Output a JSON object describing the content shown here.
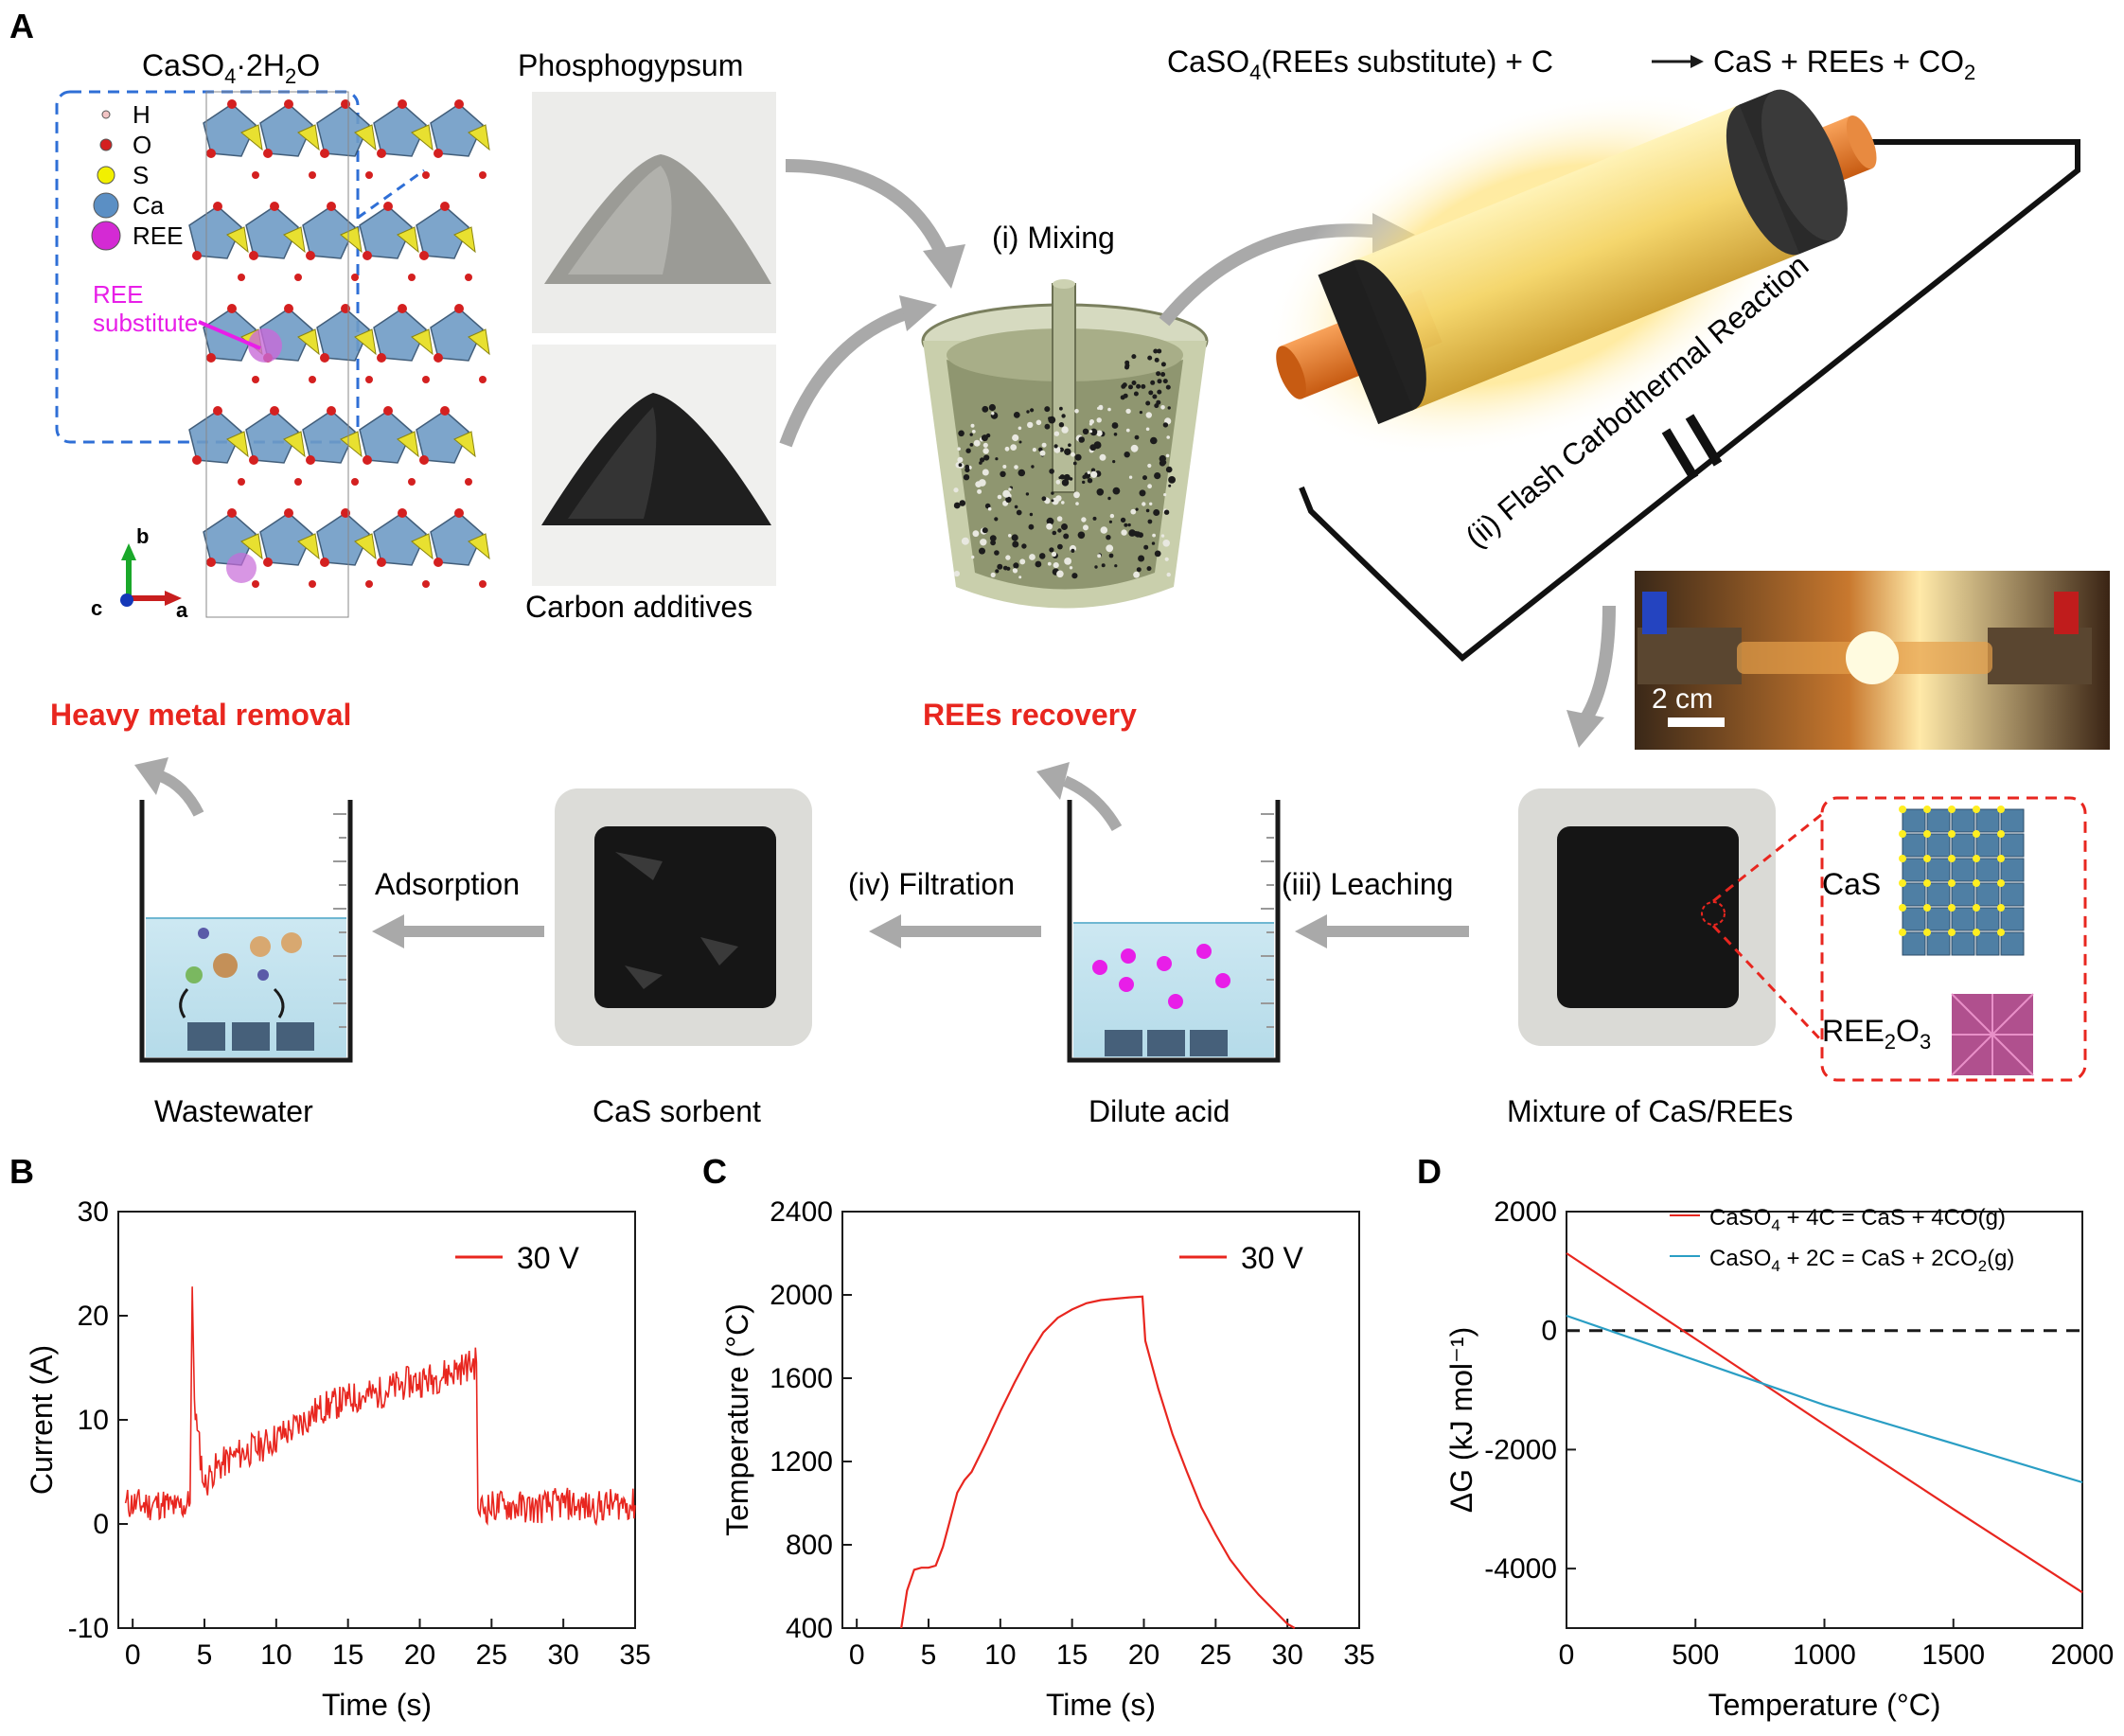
{
  "panel_a": {
    "panel_letter": "A",
    "crystal": {
      "formula_main": "CaSO",
      "formula_sub4": "4",
      "formula_dot": "·2H",
      "formula_sub2": "2",
      "formula_end": "O",
      "legend": [
        {
          "label": "H",
          "color": "#f2c4c4"
        },
        {
          "label": "O",
          "color": "#d42020"
        },
        {
          "label": "S",
          "color": "#f2f000"
        },
        {
          "label": "Ca",
          "color": "#5b8fc4"
        },
        {
          "label": "REE",
          "color": "#d42ad4"
        }
      ],
      "ree_note_line1": "REE",
      "ree_note_line2": "substitute",
      "axis_b": "b",
      "axis_c": "c",
      "axis_a": "a"
    },
    "phosphogypsum_label": "Phosphogypsum",
    "carbon_label": "Carbon additives",
    "mixing_label": "(i) Mixing",
    "equation": {
      "lhs": "CaSO",
      "lhs_sub": "4",
      "lhs_rest": "(REEs substitute) + C",
      "rhs": "CaS + REEs + CO",
      "rhs_sub": "2"
    },
    "reaction_label": "(ii) Flash Carbothermal Reaction",
    "scale_bar": "2 cm",
    "mixture_label": "Mixture of CaS/REEs",
    "cas_label": "CaS",
    "ree2o3": {
      "a": "REE",
      "b": "2",
      "c": "O",
      "d": "3"
    },
    "leaching_label": "(iii) Leaching",
    "dilute_acid_label": "Dilute acid",
    "ree_recovery_label": "REEs recovery",
    "filtration_label": "(iv) Filtration",
    "cas_sorbent_label": "CaS sorbent",
    "adsorption_label": "Adsorption",
    "wastewater_label": "Wastewater",
    "heavy_metal_label": "Heavy metal removal",
    "accent_red": "#e8261f",
    "accent_magenta": "#e81ee8"
  },
  "chart_data": [
    {
      "panel": "B",
      "type": "line",
      "xlabel": "Time (s)",
      "ylabel": "Current (A)",
      "xlim": [
        -1,
        35
      ],
      "ylim": [
        -10,
        30
      ],
      "xticks": [
        "0",
        "5",
        "10",
        "15",
        "20",
        "25",
        "30",
        "35"
      ],
      "yticks": [
        "-10",
        "0",
        "10",
        "20",
        "30"
      ],
      "series": [
        {
          "name": "30 V",
          "color": "#e8261f",
          "x": [
            -0.5,
            1,
            2,
            3,
            4,
            4.15,
            4.3,
            4.5,
            5,
            5.5,
            7,
            9,
            11,
            13,
            15,
            17,
            19,
            21,
            23,
            23.95,
            24.05,
            26,
            28,
            30,
            32,
            34,
            35
          ],
          "y": [
            2,
            1.8,
            2,
            1.5,
            2,
            22.8,
            12,
            9,
            3.5,
            5,
            6.5,
            7.5,
            9,
            11,
            12,
            12.5,
            13.5,
            14,
            15,
            15.5,
            1.5,
            1.8,
            1.5,
            2,
            1.5,
            2,
            1.8
          ]
        }
      ],
      "legend_position": "top-right"
    },
    {
      "panel": "C",
      "type": "line",
      "xlabel": "Time (s)",
      "ylabel": "Temperature (°C)",
      "xlim": [
        -1,
        35
      ],
      "ylim": [
        400,
        2400
      ],
      "xticks": [
        "0",
        "5",
        "10",
        "15",
        "20",
        "25",
        "30",
        "35"
      ],
      "yticks": [
        "400",
        "800",
        "1200",
        "1600",
        "2000",
        "2400"
      ],
      "series": [
        {
          "name": "30 V",
          "color": "#e8261f",
          "x": [
            3.1,
            3.5,
            4,
            4.5,
            5,
            5.5,
            6,
            6.5,
            7,
            7.5,
            8,
            9,
            10,
            11,
            12,
            13,
            14,
            15,
            16,
            17,
            18,
            19,
            19.9,
            20.1,
            21,
            22,
            23,
            24,
            25,
            26,
            27,
            28,
            29,
            30,
            30.5
          ],
          "y": [
            400,
            580,
            680,
            690,
            690,
            700,
            790,
            920,
            1050,
            1110,
            1150,
            1290,
            1440,
            1580,
            1710,
            1820,
            1890,
            1930,
            1960,
            1975,
            1982,
            1988,
            1992,
            1780,
            1550,
            1330,
            1150,
            980,
            850,
            730,
            640,
            560,
            490,
            420,
            400
          ]
        }
      ],
      "legend_position": "top-right"
    },
    {
      "panel": "D",
      "type": "line",
      "xlabel": "Temperature (°C)",
      "ylabel": "ΔG (kJ mol⁻¹)",
      "xlim": [
        0,
        2000
      ],
      "ylim": [
        -5000,
        2000
      ],
      "xticks": [
        "0",
        "500",
        "1000",
        "1500",
        "2000"
      ],
      "yticks": [
        "-4000",
        "-2000",
        "0",
        "2000"
      ],
      "reference_line": 0,
      "series": [
        {
          "name": "CaSO4 + 4C = CaS + 4CO(g)",
          "color": "#e8261f",
          "x": [
            0,
            500,
            1000,
            1500,
            2000
          ],
          "y": [
            1300,
            -140,
            -1580,
            -3000,
            -4400
          ]
        },
        {
          "name": "CaSO4 + 2C = CaS + 2CO2(g)",
          "color": "#2a9ec4",
          "x": [
            0,
            500,
            1000,
            1500,
            2000
          ],
          "y": [
            250,
            -500,
            -1250,
            -1900,
            -2550
          ]
        }
      ],
      "legend_position": "top-right"
    }
  ],
  "legend_text": {
    "d_red_a": "CaSO",
    "d_red_sub": "4",
    "d_red_b": " + 4C = CaS + 4CO(g)",
    "d_blue_a": "CaSO",
    "d_blue_sub": "4",
    "d_blue_b": " + 2C = CaS + 2CO",
    "d_blue_sub2": "2",
    "d_blue_c": "(g)"
  }
}
